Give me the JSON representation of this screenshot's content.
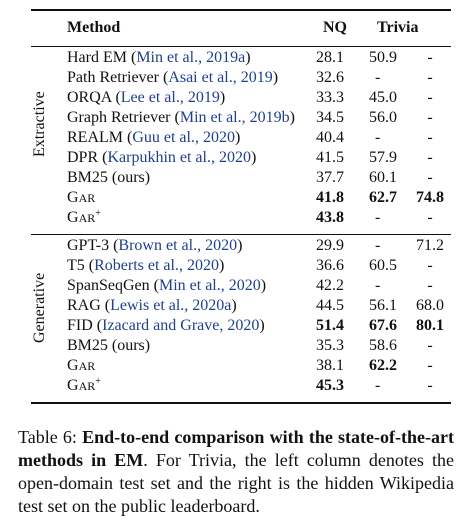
{
  "table": {
    "header": {
      "method": "Method",
      "nq": "NQ",
      "trivia": "Trivia"
    },
    "groups": [
      {
        "label": "Extractive",
        "rows": [
          {
            "method": "Hard EM",
            "cite": "Min et al., 2019a",
            "nq": "28.1",
            "trivia_open": "50.9",
            "trivia_hidden": "-"
          },
          {
            "method": "Path Retriever",
            "cite": "Asai et al., 2019",
            "nq": "32.6",
            "trivia_open": "-",
            "trivia_hidden": "-"
          },
          {
            "method": "ORQA",
            "cite": "Lee et al., 2019",
            "nq": "33.3",
            "trivia_open": "45.0",
            "trivia_hidden": "-"
          },
          {
            "method": "Graph Retriever",
            "cite": "Min et al., 2019b",
            "nq": "34.5",
            "trivia_open": "56.0",
            "trivia_hidden": "-"
          },
          {
            "method": "REALM",
            "cite": "Guu et al., 2020",
            "nq": "40.4",
            "trivia_open": "-",
            "trivia_hidden": "-"
          },
          {
            "method": "DPR",
            "cite": "Karpukhin et al., 2020",
            "nq": "41.5",
            "trivia_open": "57.9",
            "trivia_hidden": "-"
          },
          {
            "method": "BM25 (ours)",
            "cite": "",
            "nq": "37.7",
            "trivia_open": "60.1",
            "trivia_hidden": "-"
          },
          {
            "method_first": "G",
            "method_rest": "AR",
            "method_sup": "",
            "nq": "41.8",
            "trivia_open": "62.7",
            "trivia_hidden": "74.8"
          },
          {
            "method_first": "G",
            "method_rest": "AR",
            "method_sup": "+",
            "nq": "43.8",
            "trivia_open": "-",
            "trivia_hidden": "-"
          }
        ]
      },
      {
        "label": "Generative",
        "rows": [
          {
            "method": "GPT-3",
            "cite": "Brown et al., 2020",
            "nq": "29.9",
            "trivia_open": "-",
            "trivia_hidden": "71.2"
          },
          {
            "method": "T5",
            "cite": "Roberts et al., 2020",
            "nq": "36.6",
            "trivia_open": "60.5",
            "trivia_hidden": "-"
          },
          {
            "method": "SpanSeqGen",
            "cite": "Min et al., 2020",
            "nq": "42.2",
            "trivia_open": "-",
            "trivia_hidden": "-"
          },
          {
            "method": "RAG",
            "cite": "Lewis et al., 2020a",
            "nq": "44.5",
            "trivia_open": "56.1",
            "trivia_hidden": "68.0"
          },
          {
            "method": "FID",
            "cite": "Izacard and Grave, 2020",
            "nq": "51.4",
            "trivia_open": "67.6",
            "trivia_hidden": "80.1"
          },
          {
            "method": "BM25 (ours)",
            "cite": "",
            "nq": "35.3",
            "trivia_open": "58.6",
            "trivia_hidden": "-"
          },
          {
            "method_first": "G",
            "method_rest": "AR",
            "method_sup": "",
            "nq": "38.1",
            "trivia_open": "62.2",
            "trivia_hidden": "-"
          },
          {
            "method_first": "G",
            "method_rest": "AR",
            "method_sup": "+",
            "nq": "45.3",
            "trivia_open": "-",
            "trivia_hidden": "-"
          }
        ]
      }
    ]
  },
  "caption": {
    "prefix": "Table 6: ",
    "bold": "End-to-end comparison with the state-of-the-art methods in EM",
    "rest": ". For Trivia, the left column denotes the open-domain test set and the right is the hidden Wikipedia test set on the public leaderboard."
  }
}
